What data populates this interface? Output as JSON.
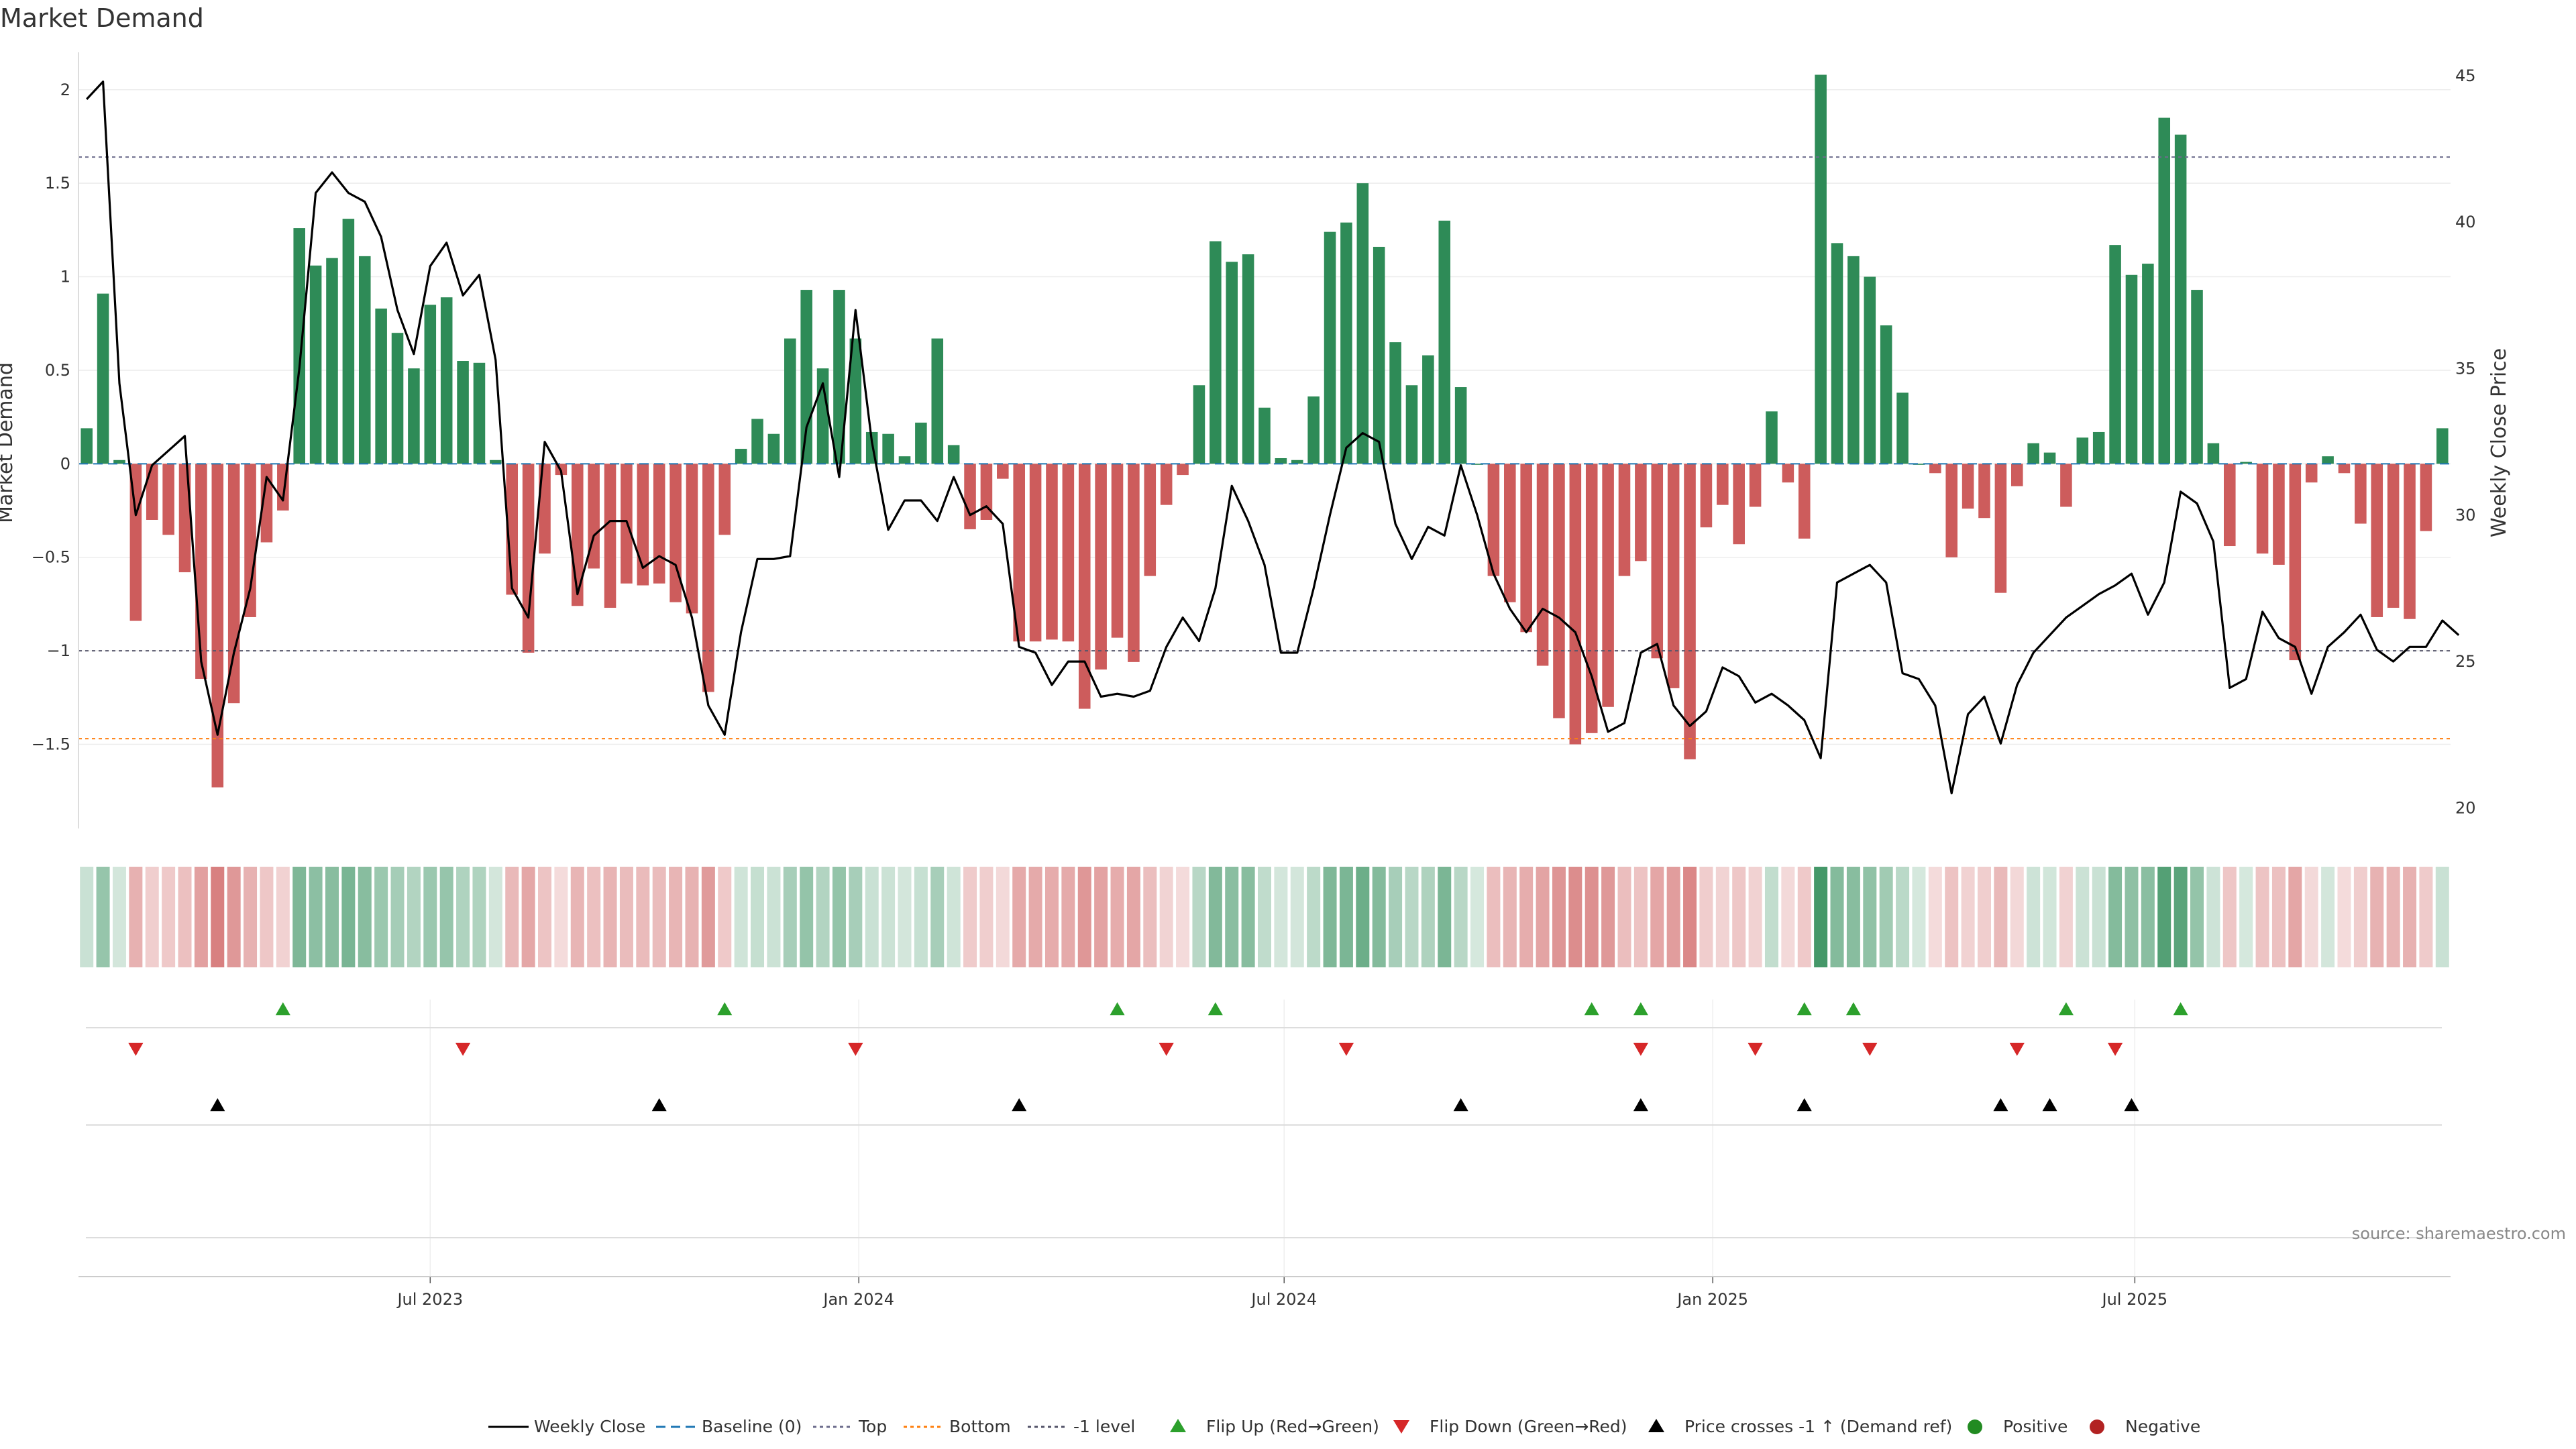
{
  "chart_data": {
    "type": "bar",
    "title": "Market Demand",
    "ylabel_left": "Market Demand",
    "ylabel_right": "Weekly Close Price",
    "source": "source: sharemaestro.com",
    "ylim_left": [
      -1.95,
      2.2
    ],
    "ylim_right": [
      19.3,
      45.8
    ],
    "yticks_left": [
      2,
      1.5,
      1,
      0.5,
      0,
      -0.5,
      -1,
      -1.5
    ],
    "yticks_left_labels": [
      "2",
      "1.5",
      "1",
      "0.5",
      "0",
      "−0.5",
      "−1",
      "−1.5"
    ],
    "yticks_right": [
      45,
      40,
      35,
      30,
      25,
      20
    ],
    "xticks": [
      {
        "label": "Jul 2023",
        "week": 21.5
      },
      {
        "label": "Jan 2024",
        "week": 47.7
      },
      {
        "label": "Jul 2024",
        "week": 73.7
      },
      {
        "label": "Jan 2025",
        "week": 99.9
      },
      {
        "label": "Jul 2025",
        "week": 125.7
      }
    ],
    "reference_lines": {
      "baseline": 0,
      "top": 1.64,
      "bottom": -1.47,
      "minus_one": -1.0
    },
    "demand": [
      0.19,
      0.91,
      0.02,
      -0.84,
      -0.3,
      -0.38,
      -0.58,
      -1.15,
      -1.73,
      -1.28,
      -0.82,
      -0.42,
      -0.25,
      1.26,
      1.06,
      1.1,
      1.31,
      1.11,
      0.83,
      0.7,
      0.51,
      0.85,
      0.89,
      0.55,
      0.54,
      0.02,
      -0.7,
      -1.01,
      -0.48,
      -0.06,
      -0.76,
      -0.56,
      -0.77,
      -0.64,
      -0.65,
      -0.64,
      -0.74,
      -0.8,
      -1.22,
      -0.38,
      0.08,
      0.24,
      0.16,
      0.67,
      0.93,
      0.51,
      0.93,
      0.67,
      0.17,
      0.16,
      0.04,
      0.22,
      0.67,
      0.1,
      -0.35,
      -0.3,
      -0.08,
      -0.95,
      -0.95,
      -0.94,
      -0.95,
      -1.31,
      -1.1,
      -0.93,
      -1.06,
      -0.6,
      -0.22,
      -0.06,
      0.42,
      1.19,
      1.08,
      1.12,
      0.3,
      0.03,
      0.02,
      0.36,
      1.24,
      1.29,
      1.5,
      1.16,
      0.65,
      0.42,
      0.58,
      1.3,
      0.41,
      0.0,
      -0.6,
      -0.74,
      -0.9,
      -1.08,
      -1.36,
      -1.5,
      -1.44,
      -1.3,
      -0.6,
      -0.52,
      -1.04,
      -1.2,
      -1.58,
      -0.34,
      -0.22,
      -0.43,
      -0.23,
      0.28,
      -0.1,
      -0.4,
      2.08,
      1.18,
      1.11,
      1.0,
      0.74,
      0.38,
      0.0,
      -0.05,
      -0.5,
      -0.24,
      -0.29,
      -0.69,
      -0.12,
      0.11,
      0.06,
      -0.23,
      0.14,
      0.17,
      1.17,
      1.01,
      1.07,
      1.85,
      1.76,
      0.93,
      0.11,
      -0.44,
      0.01,
      -0.48,
      -0.54,
      -1.05,
      -0.1,
      0.04,
      -0.05,
      -0.32,
      -0.82,
      -0.77,
      -0.83,
      -0.36,
      0.19
    ],
    "weekly_close": [
      44.2,
      44.8,
      34.5,
      30.0,
      31.7,
      32.2,
      32.7,
      25.0,
      22.5,
      25.3,
      27.5,
      31.3,
      30.5,
      35.0,
      41.0,
      41.7,
      41.0,
      40.7,
      39.5,
      37.0,
      35.5,
      38.5,
      39.3,
      37.5,
      38.2,
      35.3,
      27.5,
      26.5,
      32.5,
      31.5,
      27.3,
      29.3,
      29.8,
      29.8,
      28.2,
      28.6,
      28.3,
      26.5,
      23.5,
      22.5,
      26.0,
      28.5,
      28.5,
      28.6,
      33.0,
      34.5,
      31.3,
      37.0,
      32.5,
      29.5,
      30.5,
      30.5,
      29.8,
      31.3,
      30.0,
      30.3,
      29.7,
      25.5,
      25.3,
      24.2,
      25.0,
      25.0,
      23.8,
      23.9,
      23.8,
      24.0,
      25.5,
      26.5,
      25.7,
      27.5,
      31.0,
      29.8,
      28.3,
      25.3,
      25.3,
      27.5,
      30.0,
      32.3,
      32.8,
      32.5,
      29.7,
      28.5,
      29.6,
      29.3,
      31.7,
      30.0,
      28.0,
      26.8,
      26.0,
      26.8,
      26.5,
      26.0,
      24.5,
      22.6,
      22.9,
      25.3,
      25.6,
      23.5,
      22.8,
      23.3,
      24.8,
      24.5,
      23.6,
      23.9,
      23.5,
      23.0,
      21.7,
      27.7,
      28.0,
      28.3,
      27.7,
      24.6,
      24.4,
      23.5,
      20.5,
      23.2,
      23.8,
      22.2,
      24.2,
      25.3,
      25.9,
      26.5,
      26.9,
      27.3,
      27.6,
      28.0,
      26.6,
      27.7,
      30.8,
      30.4,
      29.1,
      24.1,
      24.4,
      26.7,
      25.8,
      25.5,
      23.9,
      25.5,
      26.0,
      26.6,
      25.4,
      25.0,
      25.5,
      25.5,
      26.4,
      25.9
    ],
    "flip_up_weeks": [
      12,
      39,
      63,
      69,
      92,
      95,
      105,
      108,
      121,
      128
    ],
    "flip_down_weeks": [
      3,
      23,
      47,
      66,
      77,
      95,
      102,
      109,
      118,
      124
    ],
    "price_cross_weeks": [
      8,
      35,
      57,
      84,
      95,
      105,
      117,
      120,
      125
    ],
    "series": [
      {
        "name": "Weekly Close"
      },
      {
        "name": "Baseline (0)"
      },
      {
        "name": "Top"
      },
      {
        "name": "Bottom"
      },
      {
        "name": "-1 level"
      },
      {
        "name": "Flip Up (Red→Green)"
      },
      {
        "name": "Flip Down (Green→Red)"
      },
      {
        "name": "Price crosses -1 ↑ (Demand ref)"
      },
      {
        "name": "Positive"
      },
      {
        "name": "Negative"
      }
    ],
    "colors": {
      "positive": "#2e8b57",
      "negative": "#cd5c5c",
      "price": "#000000",
      "baseline": "#1f77b4",
      "top": "#6c6c8c",
      "bottom": "#ff7f0e",
      "minus_one": "#55556a",
      "flip_up": "#2ca02c",
      "flip_down": "#d62728",
      "cross": "#000000",
      "positive_dot": "#228b22",
      "negative_dot": "#b22222"
    }
  }
}
